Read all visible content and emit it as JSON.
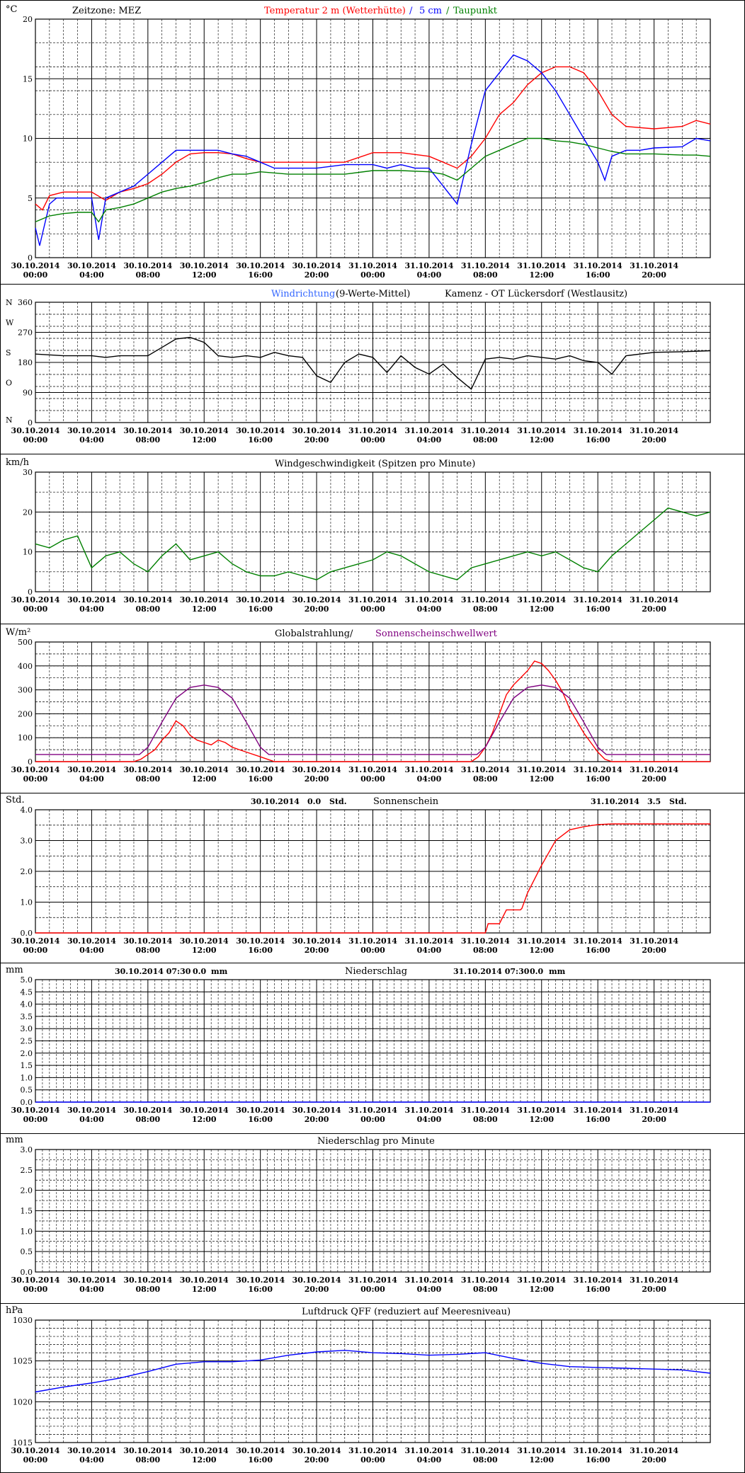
{
  "colors": {
    "red": "#ff0000",
    "blue": "#0000ff",
    "green": "#008000",
    "black": "#000000",
    "purple": "#800080",
    "windblue": "#3366ff",
    "lightblue": "#4060ff"
  },
  "x_axis": {
    "labels": [
      [
        "30.10.2014",
        "00:00"
      ],
      [
        "30.10.2014",
        "04:00"
      ],
      [
        "30.10.2014",
        "08:00"
      ],
      [
        "30.10.2014",
        "12:00"
      ],
      [
        "30.10.2014",
        "16:00"
      ],
      [
        "30.10.2014",
        "20:00"
      ],
      [
        "31.10.2014",
        "00:00"
      ],
      [
        "31.10.2014",
        "04:00"
      ],
      [
        "31.10.2014",
        "08:00"
      ],
      [
        "31.10.2014",
        "12:00"
      ],
      [
        "31.10.2014",
        "16:00"
      ],
      [
        "31.10.2014",
        "20:00"
      ]
    ],
    "range_hours": [
      0,
      48
    ]
  },
  "chart_data": [
    {
      "id": "temperature",
      "type": "line",
      "unit": "°C",
      "ylim": [
        0,
        20
      ],
      "yticks": [
        0,
        5,
        10,
        15,
        20
      ],
      "title_parts": [
        {
          "text": "Zeitzone: MEZ",
          "color": "black"
        },
        {
          "text": "Temperatur 2 m (Wetterhütte)",
          "color": "red"
        },
        {
          "text": "/",
          "color": "blue"
        },
        {
          "text": "5 cm",
          "color": "blue"
        },
        {
          "text": "/",
          "color": "green"
        },
        {
          "text": "Taupunkt",
          "color": "green"
        }
      ],
      "series": [
        {
          "name": "Temperatur 2 m (Wetterhütte)",
          "color": "red",
          "x": [
            0,
            0.5,
            1,
            2,
            3,
            4,
            5,
            6,
            7,
            8,
            9,
            10,
            11,
            12,
            13,
            14,
            15,
            16,
            18,
            20,
            22,
            24,
            26,
            28,
            29,
            30,
            31,
            32,
            33,
            34,
            35,
            36,
            37,
            38,
            39,
            40,
            41,
            42,
            44,
            46,
            47,
            48
          ],
          "y": [
            4.5,
            4.0,
            5.2,
            5.5,
            5.5,
            5.5,
            4.8,
            5.5,
            5.8,
            6.2,
            7.0,
            8.0,
            8.7,
            8.8,
            8.8,
            8.7,
            8.3,
            8.0,
            8.0,
            8.0,
            8.0,
            8.8,
            8.8,
            8.5,
            8.0,
            7.5,
            8.5,
            10.0,
            12.0,
            13.0,
            14.5,
            15.5,
            16.0,
            16.0,
            15.5,
            14.0,
            12.0,
            11.0,
            10.8,
            11.0,
            11.5,
            11.2
          ]
        },
        {
          "name": "5 cm",
          "color": "blue",
          "x": [
            0,
            0.3,
            0.6,
            1,
            1.5,
            2,
            3,
            4,
            4.5,
            5,
            6,
            7,
            8,
            9,
            10,
            11,
            12,
            13,
            14,
            15,
            16,
            17,
            18,
            20,
            22,
            24,
            25,
            26,
            27,
            28,
            29,
            30,
            30.5,
            31,
            32,
            33,
            34,
            35,
            36,
            37,
            38,
            39,
            40,
            40.5,
            41,
            42,
            43,
            44,
            46,
            47,
            48
          ],
          "y": [
            2.5,
            1.0,
            2.5,
            4.5,
            5.0,
            5.0,
            5.0,
            5.0,
            1.5,
            5.0,
            5.5,
            6.0,
            7.0,
            8.0,
            9.0,
            9.0,
            9.0,
            9.0,
            8.7,
            8.5,
            8.0,
            7.5,
            7.5,
            7.5,
            7.8,
            7.8,
            7.5,
            7.8,
            7.5,
            7.5,
            6.0,
            4.5,
            7.0,
            9.5,
            14.0,
            15.5,
            17.0,
            16.5,
            15.5,
            14.0,
            12.0,
            10.0,
            8.0,
            6.5,
            8.5,
            9.0,
            9.0,
            9.2,
            9.3,
            10.0,
            9.8
          ]
        },
        {
          "name": "Taupunkt",
          "color": "green",
          "x": [
            0,
            1,
            2,
            3,
            4,
            4.5,
            5,
            6,
            7,
            8,
            9,
            10,
            11,
            12,
            13,
            14,
            15,
            16,
            18,
            20,
            22,
            24,
            26,
            28,
            29,
            30,
            31,
            32,
            33,
            34,
            35,
            36,
            37,
            38,
            39,
            40,
            41,
            42,
            44,
            46,
            47,
            48
          ],
          "y": [
            3.0,
            3.5,
            3.7,
            3.8,
            3.8,
            3.0,
            4.0,
            4.2,
            4.5,
            5.0,
            5.5,
            5.8,
            6.0,
            6.3,
            6.7,
            7.0,
            7.0,
            7.2,
            7.0,
            7.0,
            7.0,
            7.3,
            7.3,
            7.2,
            7.0,
            6.5,
            7.5,
            8.5,
            9.0,
            9.5,
            10.0,
            10.0,
            9.8,
            9.7,
            9.5,
            9.2,
            8.9,
            8.7,
            8.7,
            8.6,
            8.6,
            8.5
          ]
        }
      ]
    },
    {
      "id": "wind_direction",
      "type": "line",
      "ylim": [
        0,
        360
      ],
      "yticks": [
        0,
        90,
        180,
        270,
        360
      ],
      "compass": [
        "N",
        "O",
        "S",
        "W",
        "N"
      ],
      "title_parts": [
        {
          "text": "Windrichtung",
          "color": "windblue"
        },
        {
          "text": "(9-Werte-Mittel)",
          "color": "black"
        },
        {
          "text": "Kamenz - OT Lückersdorf (Westlausitz)",
          "color": "black"
        }
      ],
      "series": [
        {
          "name": "9-Werte-Mittel",
          "color": "black",
          "x": [
            0,
            2,
            4,
            5,
            6,
            8,
            9,
            10,
            11,
            12,
            13,
            14,
            15,
            16,
            17,
            18,
            19,
            20,
            21,
            22,
            23,
            24,
            25,
            26,
            27,
            28,
            29,
            30,
            31,
            32,
            33,
            34,
            35,
            36,
            37,
            38,
            39,
            40,
            41,
            42,
            44,
            46,
            48
          ],
          "y": [
            205,
            200,
            200,
            195,
            200,
            200,
            225,
            250,
            255,
            240,
            200,
            195,
            200,
            195,
            210,
            200,
            195,
            140,
            120,
            180,
            205,
            195,
            150,
            200,
            165,
            145,
            175,
            135,
            100,
            190,
            195,
            190,
            200,
            195,
            190,
            200,
            185,
            180,
            145,
            200,
            210,
            212,
            215
          ]
        }
      ]
    },
    {
      "id": "wind_speed",
      "type": "line",
      "unit": "km/h",
      "ylim": [
        0,
        30
      ],
      "yticks": [
        0,
        10,
        20,
        30
      ],
      "title": "Windgeschwindigkeit (Spitzen pro Minute)",
      "series": [
        {
          "name": "Windgeschwindigkeit",
          "color": "green",
          "x": [
            0,
            1,
            2,
            3,
            4,
            5,
            6,
            7,
            8,
            9,
            10,
            11,
            12,
            13,
            14,
            15,
            16,
            17,
            18,
            19,
            20,
            21,
            22,
            23,
            24,
            25,
            26,
            27,
            28,
            29,
            30,
            31,
            32,
            33,
            34,
            35,
            36,
            37,
            38,
            39,
            40,
            41,
            42,
            43,
            44,
            45,
            46,
            47,
            48
          ],
          "y": [
            12,
            11,
            13,
            14,
            6,
            9,
            10,
            7,
            5,
            9,
            12,
            8,
            9,
            10,
            7,
            5,
            4,
            4,
            5,
            4,
            3,
            5,
            6,
            7,
            8,
            10,
            9,
            7,
            5,
            4,
            3,
            6,
            7,
            8,
            9,
            10,
            9,
            10,
            8,
            6,
            5,
            9,
            12,
            15,
            18,
            21,
            20,
            19,
            20
          ]
        }
      ]
    },
    {
      "id": "radiation",
      "type": "line",
      "unit": "W/m²",
      "ylim": [
        0,
        500
      ],
      "yticks": [
        0,
        100,
        200,
        300,
        400,
        500
      ],
      "title_parts": [
        {
          "text": "Globalstrahlung/",
          "color": "black"
        },
        {
          "text": "Sonnenscheinschwellwert",
          "color": "purple"
        }
      ],
      "series": [
        {
          "name": "Globalstrahlung",
          "color": "red",
          "x": [
            0,
            7,
            7.5,
            8,
            8.5,
            9,
            9.5,
            10,
            10.5,
            11,
            11.5,
            12,
            12.5,
            13,
            13.5,
            14,
            14.5,
            15,
            16,
            17,
            31,
            31.5,
            32,
            32.5,
            33,
            33.5,
            34,
            34.5,
            35,
            35.5,
            36,
            36.5,
            37,
            37.5,
            38,
            38.5,
            39,
            39.5,
            40,
            40.5,
            41,
            48
          ],
          "y": [
            0,
            0,
            10,
            30,
            50,
            90,
            120,
            170,
            150,
            110,
            90,
            80,
            70,
            90,
            80,
            60,
            50,
            40,
            20,
            0,
            0,
            20,
            60,
            120,
            200,
            280,
            320,
            350,
            380,
            420,
            410,
            380,
            340,
            290,
            220,
            170,
            120,
            80,
            40,
            10,
            0,
            0
          ]
        },
        {
          "name": "Sonnenscheinschwellwert",
          "color": "purple",
          "x": [
            0,
            7.4,
            8,
            9,
            10,
            11,
            12,
            13,
            14,
            15,
            16,
            16.6,
            31.4,
            32,
            33,
            34,
            35,
            36,
            37,
            38,
            39,
            40,
            40.6,
            48
          ],
          "y": [
            30,
            30,
            60,
            165,
            265,
            310,
            320,
            310,
            265,
            165,
            60,
            30,
            30,
            60,
            165,
            265,
            310,
            320,
            310,
            265,
            165,
            60,
            30,
            30
          ]
        }
      ]
    },
    {
      "id": "sunshine",
      "type": "line",
      "unit": "Std.",
      "ylim": [
        0,
        4
      ],
      "yticks": [
        0,
        1,
        2,
        3,
        4
      ],
      "title": "Sonnenschein",
      "annotations": [
        {
          "date": "30.10.2014",
          "value": "0.0",
          "unit": "Std."
        },
        {
          "date": "31.10.2014",
          "value": "3.5",
          "unit": "Std."
        }
      ],
      "series": [
        {
          "name": "Sonnenschein",
          "color": "red",
          "x": [
            0,
            32,
            32.2,
            33,
            33.5,
            34.5,
            34.6,
            35,
            36,
            37,
            38,
            39,
            40,
            41,
            48
          ],
          "y": [
            0,
            0,
            0.3,
            0.3,
            0.75,
            0.75,
            0.8,
            1.3,
            2.2,
            3.0,
            3.35,
            3.45,
            3.52,
            3.54,
            3.54
          ]
        }
      ]
    },
    {
      "id": "precipitation",
      "type": "line",
      "unit": "mm",
      "ylim": [
        0,
        5
      ],
      "yticks": [
        0,
        0.5,
        1,
        1.5,
        2,
        2.5,
        3,
        3.5,
        4,
        4.5,
        5
      ],
      "title": "Niederschlag",
      "annotations": [
        {
          "date": "30.10.2014 07:30",
          "value": "0.0",
          "unit": "mm"
        },
        {
          "date": "31.10.2014 07:30",
          "value": "0.0",
          "unit": "mm"
        }
      ],
      "series": [
        {
          "name": "Niederschlag",
          "color": "blue",
          "x": [
            0,
            48
          ],
          "y": [
            0,
            0
          ]
        }
      ]
    },
    {
      "id": "precip_per_minute",
      "type": "line",
      "unit": "mm",
      "ylim": [
        0,
        3
      ],
      "yticks": [
        0,
        0.5,
        1,
        1.5,
        2,
        2.5,
        3
      ],
      "title": "Niederschlag pro Minute",
      "series": []
    },
    {
      "id": "pressure",
      "type": "line",
      "unit": "hPa",
      "ylim": [
        1015,
        1030
      ],
      "yticks": [
        1015,
        1020,
        1025,
        1030
      ],
      "title": "Luftdruck QFF (reduziert auf Meeresniveau)",
      "series": [
        {
          "name": "Luftdruck",
          "color": "blue",
          "x": [
            0,
            2,
            4,
            6,
            8,
            10,
            12,
            14,
            16,
            18,
            20,
            22,
            24,
            26,
            28,
            30,
            32,
            34,
            36,
            38,
            40,
            42,
            44,
            46,
            48
          ],
          "y": [
            1021.2,
            1021.8,
            1022.3,
            1022.9,
            1023.7,
            1024.6,
            1024.9,
            1024.9,
            1025.1,
            1025.7,
            1026.1,
            1026.3,
            1026.0,
            1025.9,
            1025.7,
            1025.8,
            1026.0,
            1025.3,
            1024.7,
            1024.3,
            1024.2,
            1024.1,
            1024.0,
            1023.9,
            1023.5
          ]
        }
      ]
    }
  ]
}
